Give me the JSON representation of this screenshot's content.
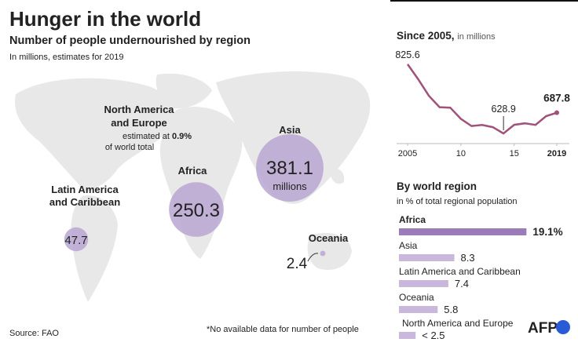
{
  "title": "Hunger in the world",
  "subtitle": "Number of people undernourished by region",
  "note": "In millions, estimates for 2019",
  "source": "Source: FAO",
  "footnote": "*No available data for number of people",
  "logo": "AFP",
  "chart_data": [
    {
      "type": "bubble",
      "categories": [
        "Asia",
        "Africa",
        "Latin America and Caribbean",
        "Oceania"
      ],
      "values": [
        381.1,
        250.3,
        47.7,
        2.4
      ],
      "unit": "millions",
      "color": "#b9a6d1",
      "annotation": {
        "label": "North America and Europe",
        "before": "estimated at",
        "share": "0.9%",
        "after": "of world total"
      }
    },
    {
      "type": "line",
      "title": "Since 2005,",
      "subtitle": "in millions",
      "x": [
        2005,
        2006,
        2007,
        2008,
        2009,
        2010,
        2011,
        2012,
        2013,
        2014,
        2015,
        2016,
        2017,
        2018,
        2019
      ],
      "values": [
        825.6,
        782.8,
        735.9,
        703.5,
        702.2,
        670.3,
        650.1,
        652.8,
        646.6,
        628.9,
        653.3,
        657.6,
        653.2,
        678.1,
        687.8
      ],
      "color": "#a0527a",
      "xlim": [
        2005,
        2019
      ],
      "xticks": [
        2005,
        {
          "value": 2010,
          "label": "10"
        },
        {
          "value": 2015,
          "label": "15"
        },
        2019
      ],
      "ylim": [
        600,
        850
      ]
    },
    {
      "type": "hbar",
      "title": "By world region",
      "subtitle": "in % of total regional population",
      "categories": [
        "Africa",
        "Asia",
        "Latin America and Caribbean",
        "Oceania",
        "North America and Europe"
      ],
      "values": [
        19.1,
        8.3,
        7.4,
        5.8,
        2.5
      ],
      "value_labels": [
        "19.1%",
        "8.3",
        "7.4",
        "5.8",
        "< 2.5"
      ],
      "colors": [
        "#9b7bb8",
        "#c9b8dc",
        "#c9b8dc",
        "#c9b8dc",
        "#c9b8dc"
      ],
      "xlim": [
        0,
        20
      ]
    }
  ]
}
